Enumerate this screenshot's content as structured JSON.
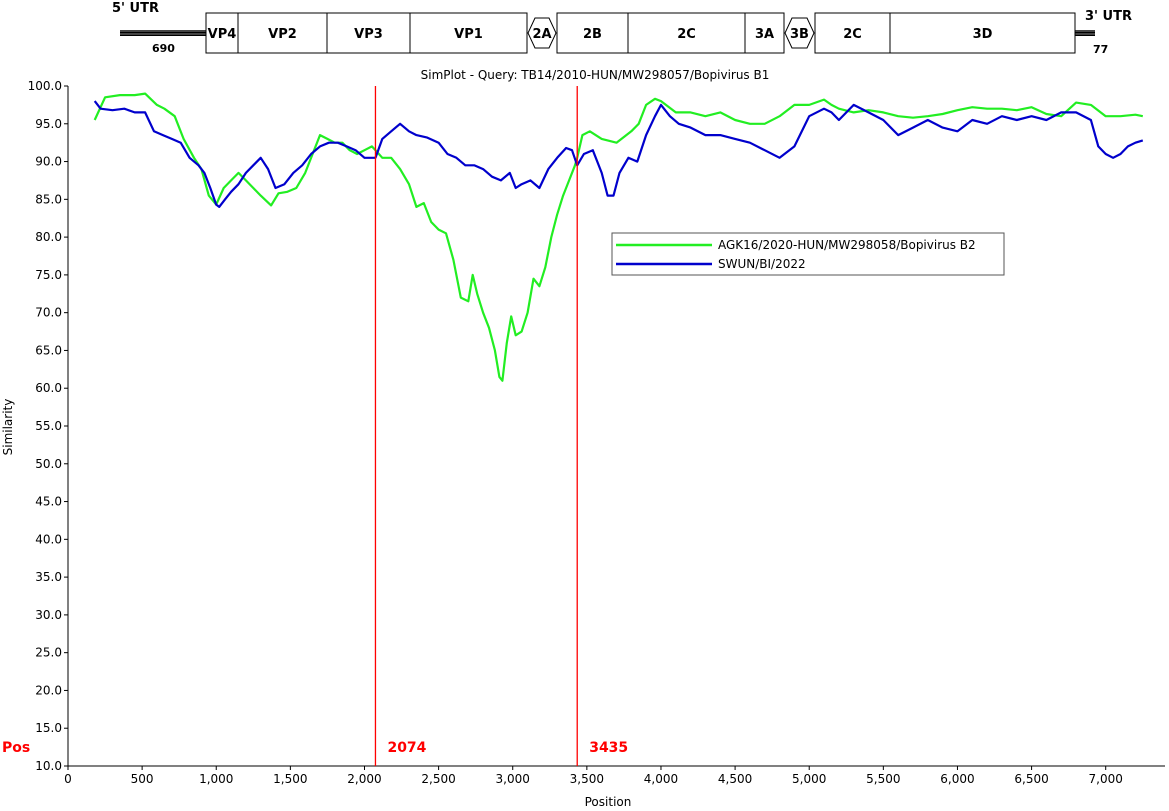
{
  "genome_map": {
    "utr5_label": "5' UTR",
    "utr5_length": "690",
    "utr3_label": "3' UTR",
    "utr3_length": "77",
    "genes": [
      {
        "label": "VP4",
        "shape": "rect"
      },
      {
        "label": "VP2",
        "shape": "rect"
      },
      {
        "label": "VP3",
        "shape": "rect"
      },
      {
        "label": "VP1",
        "shape": "rect"
      },
      {
        "label": "2A",
        "shape": "hex"
      },
      {
        "label": "2B",
        "shape": "rect"
      },
      {
        "label": "2C",
        "shape": "rect"
      },
      {
        "label": "3A",
        "shape": "rect"
      },
      {
        "label": "3B",
        "shape": "hex"
      },
      {
        "label": "2C",
        "shape": "rect"
      },
      {
        "label": "3D",
        "shape": "rect"
      }
    ]
  },
  "chart_data": {
    "type": "line",
    "title": "SimPlot - Query: TB14/2010-HUN/MW298057/Bopivirus B1",
    "xlabel": "Position",
    "ylabel": "Similarity",
    "xlim": [
      0,
      7400
    ],
    "ylim": [
      10,
      100
    ],
    "xticks": [
      0,
      500,
      1000,
      1500,
      2000,
      2500,
      3000,
      3500,
      4000,
      4500,
      5000,
      5500,
      6000,
      6500,
      7000
    ],
    "xtick_labels": [
      "0",
      "500",
      "1,000",
      "1,500",
      "2,000",
      "2,500",
      "3,000",
      "3,500",
      "4,000",
      "4,500",
      "5,000",
      "5,500",
      "6,000",
      "6,500",
      "7,000"
    ],
    "yticks": [
      10,
      15,
      20,
      25,
      30,
      35,
      40,
      45,
      50,
      55,
      60,
      65,
      70,
      75,
      80,
      85,
      90,
      95,
      100
    ],
    "ytick_labels": [
      "10.0",
      "15.0",
      "20.0",
      "25.0",
      "30.0",
      "35.0",
      "40.0",
      "45.0",
      "50.0",
      "55.0",
      "60.0",
      "65.0",
      "70.0",
      "75.0",
      "80.0",
      "85.0",
      "90.0",
      "95.0",
      "100.0"
    ],
    "grid": false,
    "legend_position": "center-right",
    "pos_label": "Pos",
    "breakpoints": [
      {
        "x": 2074,
        "label": "2074"
      },
      {
        "x": 3435,
        "label": "3435"
      }
    ],
    "series": [
      {
        "name": "AGK16/2020-HUN/MW298058/Bopivirus B2",
        "color": "#22ee22",
        "x": [
          180,
          250,
          350,
          450,
          520,
          600,
          650,
          720,
          780,
          850,
          900,
          950,
          1000,
          1050,
          1100,
          1150,
          1200,
          1250,
          1300,
          1370,
          1420,
          1480,
          1540,
          1600,
          1650,
          1700,
          1750,
          1800,
          1850,
          1900,
          1950,
          2000,
          2050,
          2074,
          2120,
          2180,
          2240,
          2300,
          2350,
          2400,
          2450,
          2500,
          2550,
          2600,
          2650,
          2700,
          2730,
          2760,
          2800,
          2840,
          2880,
          2910,
          2930,
          2960,
          2990,
          3020,
          3060,
          3100,
          3140,
          3180,
          3220,
          3260,
          3300,
          3340,
          3380,
          3420,
          3435,
          3470,
          3520,
          3600,
          3700,
          3800,
          3850,
          3900,
          3960,
          4000,
          4100,
          4200,
          4300,
          4400,
          4500,
          4600,
          4700,
          4800,
          4900,
          5000,
          5100,
          5150,
          5200,
          5300,
          5400,
          5500,
          5600,
          5700,
          5800,
          5900,
          6000,
          6100,
          6200,
          6300,
          6400,
          6500,
          6600,
          6700,
          6800,
          6900,
          7000,
          7100,
          7200,
          7250
        ],
        "values": [
          95.5,
          98.5,
          98.8,
          98.8,
          99.0,
          97.5,
          97.0,
          96.0,
          93.0,
          90.5,
          89.0,
          85.5,
          84.3,
          86.5,
          87.5,
          88.5,
          87.5,
          86.5,
          85.5,
          84.2,
          85.8,
          86.0,
          86.5,
          88.5,
          91.0,
          93.5,
          93.0,
          92.5,
          92.5,
          91.5,
          91.0,
          91.5,
          92.0,
          91.5,
          90.5,
          90.5,
          89.0,
          87.0,
          84.0,
          84.5,
          82.0,
          81.0,
          80.5,
          77.0,
          72.0,
          71.5,
          75.0,
          72.5,
          70.0,
          68.0,
          65.0,
          61.5,
          61.0,
          66.0,
          69.5,
          67.0,
          67.5,
          70.0,
          74.5,
          73.5,
          76.0,
          80.0,
          83.0,
          85.5,
          87.5,
          89.5,
          90.5,
          93.5,
          94.0,
          93.0,
          92.5,
          94.0,
          95.0,
          97.5,
          98.3,
          98.0,
          96.5,
          96.5,
          96.0,
          96.5,
          95.5,
          95.0,
          95.0,
          96.0,
          97.5,
          97.5,
          98.2,
          97.5,
          97.0,
          96.5,
          96.8,
          96.5,
          96.0,
          95.8,
          96.0,
          96.3,
          96.8,
          97.2,
          97.0,
          97.0,
          96.8,
          97.2,
          96.3,
          96.0,
          97.8,
          97.5,
          96.0,
          96.0,
          96.2,
          96.0
        ]
      },
      {
        "name": "SWUN/BI/2022",
        "color": "#0000cc",
        "x": [
          180,
          220,
          300,
          380,
          450,
          520,
          580,
          640,
          700,
          760,
          820,
          880,
          920,
          960,
          1000,
          1020,
          1060,
          1100,
          1150,
          1200,
          1250,
          1300,
          1350,
          1400,
          1460,
          1520,
          1580,
          1640,
          1700,
          1760,
          1820,
          1880,
          1940,
          2000,
          2074,
          2120,
          2180,
          2240,
          2300,
          2350,
          2420,
          2500,
          2560,
          2620,
          2680,
          2740,
          2800,
          2860,
          2920,
          2980,
          3020,
          3060,
          3120,
          3180,
          3240,
          3300,
          3360,
          3400,
          3435,
          3480,
          3540,
          3600,
          3640,
          3680,
          3720,
          3780,
          3840,
          3900,
          3960,
          4000,
          4060,
          4120,
          4200,
          4300,
          4400,
          4500,
          4600,
          4700,
          4800,
          4900,
          5000,
          5100,
          5150,
          5200,
          5300,
          5400,
          5500,
          5600,
          5700,
          5800,
          5900,
          6000,
          6100,
          6200,
          6300,
          6400,
          6500,
          6600,
          6700,
          6800,
          6900,
          6950,
          7000,
          7050,
          7100,
          7150,
          7200,
          7250
        ],
        "values": [
          98.0,
          97.0,
          96.8,
          97.0,
          96.5,
          96.5,
          94.0,
          93.5,
          93.0,
          92.5,
          90.5,
          89.5,
          88.5,
          86.5,
          84.3,
          84.0,
          85.0,
          86.0,
          87.0,
          88.5,
          89.5,
          90.5,
          89.0,
          86.5,
          87.0,
          88.5,
          89.5,
          91.0,
          92.0,
          92.5,
          92.5,
          92.0,
          91.5,
          90.5,
          90.5,
          93.0,
          94.0,
          95.0,
          94.0,
          93.5,
          93.2,
          92.5,
          91.0,
          90.5,
          89.5,
          89.5,
          89.0,
          88.0,
          87.5,
          88.5,
          86.5,
          87.0,
          87.5,
          86.5,
          89.0,
          90.5,
          91.8,
          91.5,
          89.5,
          91.0,
          91.5,
          88.5,
          85.5,
          85.5,
          88.5,
          90.5,
          90.0,
          93.5,
          96.0,
          97.5,
          96.0,
          95.0,
          94.5,
          93.5,
          93.5,
          93.0,
          92.5,
          91.5,
          90.5,
          92.0,
          96.0,
          97.0,
          96.5,
          95.5,
          97.5,
          96.5,
          95.5,
          93.5,
          94.5,
          95.5,
          94.5,
          94.0,
          95.5,
          95.0,
          96.0,
          95.5,
          96.0,
          95.5,
          96.5,
          96.5,
          95.5,
          92.0,
          91.0,
          90.5,
          91.0,
          92.0,
          92.5,
          92.8
        ]
      }
    ]
  }
}
